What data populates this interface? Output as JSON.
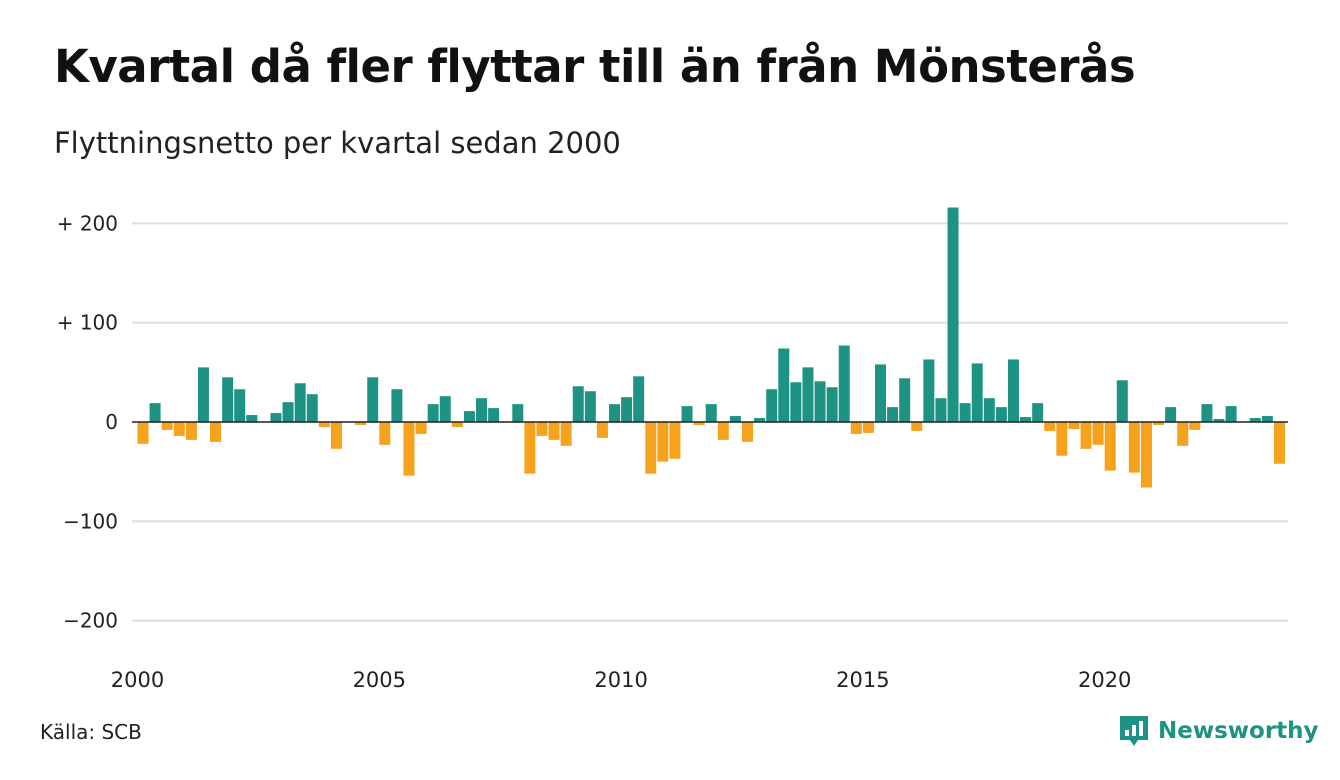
{
  "title": "Kvartal då fler flyttar till än från Mönsterås",
  "subtitle": "Flyttningsnetto per kvartal sedan 2000",
  "source": "Källa: SCB",
  "brand": {
    "name": "Newsworthy",
    "icon": "newsworthy-logo-icon"
  },
  "colors": {
    "positive": "#1f9383",
    "negative": "#f6a21c",
    "grid": "#dddddd",
    "zero": "#222222"
  },
  "chart_data": {
    "type": "bar",
    "x_start": 2000,
    "periods_per_year": 4,
    "values": [
      -22,
      19,
      -8,
      -14,
      -18,
      55,
      -20,
      45,
      33,
      7,
      0,
      9,
      20,
      39,
      28,
      -5,
      -27,
      0,
      -3,
      45,
      -23,
      33,
      -54,
      -12,
      18,
      26,
      -5,
      11,
      24,
      14,
      0,
      18,
      -52,
      -14,
      -18,
      -24,
      36,
      31,
      -16,
      18,
      25,
      46,
      -52,
      -40,
      -37,
      16,
      -3,
      18,
      -18,
      6,
      -20,
      4,
      33,
      74,
      40,
      55,
      41,
      35,
      77,
      -12,
      -11,
      58,
      15,
      44,
      -9,
      63,
      24,
      216,
      19,
      59,
      24,
      15,
      63,
      5,
      19,
      -9,
      -34,
      -7,
      -27,
      -23,
      -49,
      42,
      -51,
      -66,
      -3,
      15,
      -24,
      -8,
      18,
      3,
      16,
      0,
      4,
      6,
      -42
    ],
    "y_ticks": [
      200,
      100,
      0,
      -100,
      -200
    ],
    "y_tick_labels": [
      "+ 200",
      "+ 100",
      "0",
      "−100",
      "−200"
    ],
    "x_ticks": [
      2000,
      2005,
      2010,
      2015,
      2020
    ],
    "x_tick_labels": [
      "2000",
      "2005",
      "2010",
      "2015",
      "2020"
    ],
    "ylim": [
      -200,
      200
    ],
    "xlabel": "",
    "ylabel": "",
    "grid": true
  }
}
